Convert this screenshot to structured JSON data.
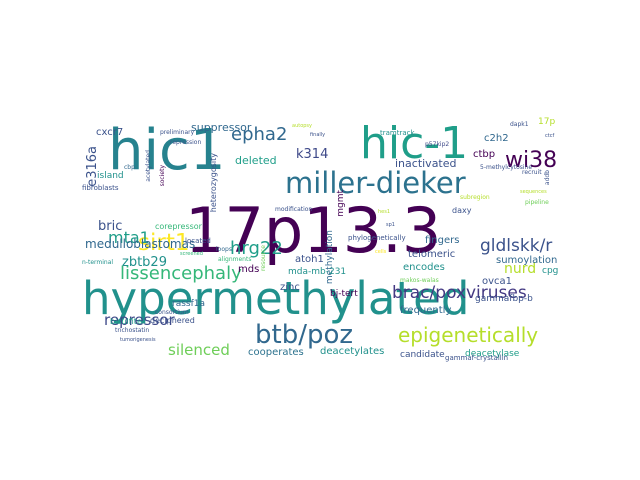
{
  "palette": {
    "dark_purple": "#440154",
    "indigo": "#3b528b",
    "slate_blue": "#31688e",
    "blue_teal": "#26828e",
    "teal": "#21918c",
    "sea_green": "#1f9e89",
    "green": "#35b779",
    "light_green": "#6ece58",
    "lime": "#b5de2b",
    "yellow": "#fde725"
  },
  "words": [
    {
      "text": "17p13.3",
      "color": "#440154"
    },
    {
      "text": "hypermethylated",
      "color": "#21918c"
    },
    {
      "text": "hic1",
      "color": "#26828e"
    },
    {
      "text": "hic-1",
      "color": "#1f9e89"
    },
    {
      "text": "miller-dieker",
      "color": "#2c728e"
    },
    {
      "text": "btb/poz",
      "color": "#31688e"
    },
    {
      "text": "epigenetically",
      "color": "#b5de2b"
    },
    {
      "text": "lissencephaly",
      "color": "#35b779"
    },
    {
      "text": "brac/poxviruses",
      "color": "#443983"
    },
    {
      "text": "sirt1",
      "color": "#fde725"
    },
    {
      "text": "mta1",
      "color": "#1f9e89"
    },
    {
      "text": "gldlskk/r",
      "color": "#3b528b"
    },
    {
      "text": "hrg22",
      "color": "#1f9e89"
    },
    {
      "text": "wi38",
      "color": "#440154"
    },
    {
      "text": "epha2",
      "color": "#31688e"
    },
    {
      "text": "repressor",
      "color": "#3e4989"
    },
    {
      "text": "silenced",
      "color": "#6ece58"
    },
    {
      "text": "zbtb29",
      "color": "#21918c"
    },
    {
      "text": "nurd",
      "color": "#b5de2b"
    },
    {
      "text": "k314",
      "color": "#3e4989"
    },
    {
      "text": "bric",
      "color": "#3b528b"
    },
    {
      "text": "e316a",
      "color": "#3b528b"
    },
    {
      "text": "medulloblastomas",
      "color": "#31688e"
    },
    {
      "text": "suppressor",
      "color": "#31688e"
    },
    {
      "text": "deleted",
      "color": "#1f9e89"
    },
    {
      "text": "inactivated",
      "color": "#3b528b"
    },
    {
      "text": "cooperates",
      "color": "#2c728e"
    },
    {
      "text": "deacetylates",
      "color": "#21918c"
    },
    {
      "text": "candidate",
      "color": "#3b528b"
    },
    {
      "text": "deacetylase",
      "color": "#1f9e89"
    },
    {
      "text": "fingers",
      "color": "#31688e"
    },
    {
      "text": "telomeric",
      "color": "#3b528b"
    },
    {
      "text": "sumoylation",
      "color": "#31688e"
    },
    {
      "text": "encodes",
      "color": "#21918c"
    },
    {
      "text": "methylation",
      "color": "#31688e"
    },
    {
      "text": "atoh1",
      "color": "#3b528b"
    },
    {
      "text": "mds",
      "color": "#440154"
    },
    {
      "text": "mda-mb-231",
      "color": "#21918c"
    },
    {
      "text": "zinc",
      "color": "#3b528b"
    },
    {
      "text": "bj-tert",
      "color": "#440154"
    },
    {
      "text": "frequently",
      "color": "#31688e"
    },
    {
      "text": "ovca1",
      "color": "#3b528b"
    },
    {
      "text": "gammafbp-b",
      "color": "#3b528b"
    },
    {
      "text": "cpg",
      "color": "#21918c"
    },
    {
      "text": "ctbp",
      "color": "#440154"
    },
    {
      "text": "c2h2",
      "color": "#31688e"
    },
    {
      "text": "17p",
      "color": "#b5de2b"
    },
    {
      "text": "cxcr7",
      "color": "#3b528b"
    },
    {
      "text": "island",
      "color": "#21918c"
    },
    {
      "text": "corepressor",
      "color": "#35b779"
    },
    {
      "text": "rassf1a",
      "color": "#31688e"
    },
    {
      "text": "bisulfite",
      "color": "#1f9e89"
    },
    {
      "text": "deciphered",
      "color": "#3b528b"
    },
    {
      "text": "heterozygosity",
      "color": "#3b528b"
    },
    {
      "text": "mgmt",
      "color": "#440154"
    },
    {
      "text": "gammaf-crystallin",
      "color": "#3b528b"
    },
    {
      "text": "daxy",
      "color": "#3b528b"
    },
    {
      "text": "tramtrack",
      "color": "#21918c"
    },
    {
      "text": "5-methylcytosine",
      "color": "#3b528b"
    },
    {
      "text": "p57kip2",
      "color": "#3e4989"
    },
    {
      "text": "located",
      "color": "#3b528b"
    },
    {
      "text": "loops",
      "color": "#31688e"
    },
    {
      "text": "alignments",
      "color": "#35b779"
    },
    {
      "text": "phylogenetically",
      "color": "#3b528b"
    },
    {
      "text": "modification",
      "color": "#3b528b"
    },
    {
      "text": "preliminary",
      "color": "#3b528b"
    },
    {
      "text": "repression",
      "color": "#3b528b"
    },
    {
      "text": "fibroblasts",
      "color": "#3b528b"
    },
    {
      "text": "consortium",
      "color": "#3b528b"
    },
    {
      "text": "trichostatin",
      "color": "#3b528b"
    },
    {
      "text": "makos-walas",
      "color": "#6ece58"
    },
    {
      "text": "society",
      "color": "#440154"
    },
    {
      "text": "acetylated",
      "color": "#3b528b"
    },
    {
      "text": "cbp",
      "color": "#31688e"
    },
    {
      "text": "resource",
      "color": "#6ece58"
    },
    {
      "text": "pipeline",
      "color": "#6ece58"
    },
    {
      "text": "sequences",
      "color": "#b5de2b"
    },
    {
      "text": "recruit",
      "color": "#3b528b"
    },
    {
      "text": "subregion",
      "color": "#b5de2b"
    },
    {
      "text": "n-terminal",
      "color": "#21918c"
    },
    {
      "text": "tumorigenesis",
      "color": "#3b528b"
    },
    {
      "text": "screened",
      "color": "#35b779"
    },
    {
      "text": "finally",
      "color": "#3b528b"
    },
    {
      "text": "autopsy",
      "color": "#b5de2b"
    },
    {
      "text": "dapk1",
      "color": "#3b528b"
    },
    {
      "text": "ctcf",
      "color": "#3b528b"
    },
    {
      "text": "cells",
      "color": "#fde725"
    },
    {
      "text": "sp1",
      "color": "#3b528b"
    },
    {
      "text": "hes1",
      "color": "#b5de2b"
    },
    {
      "text": "addb",
      "color": "#3b528b"
    }
  ]
}
